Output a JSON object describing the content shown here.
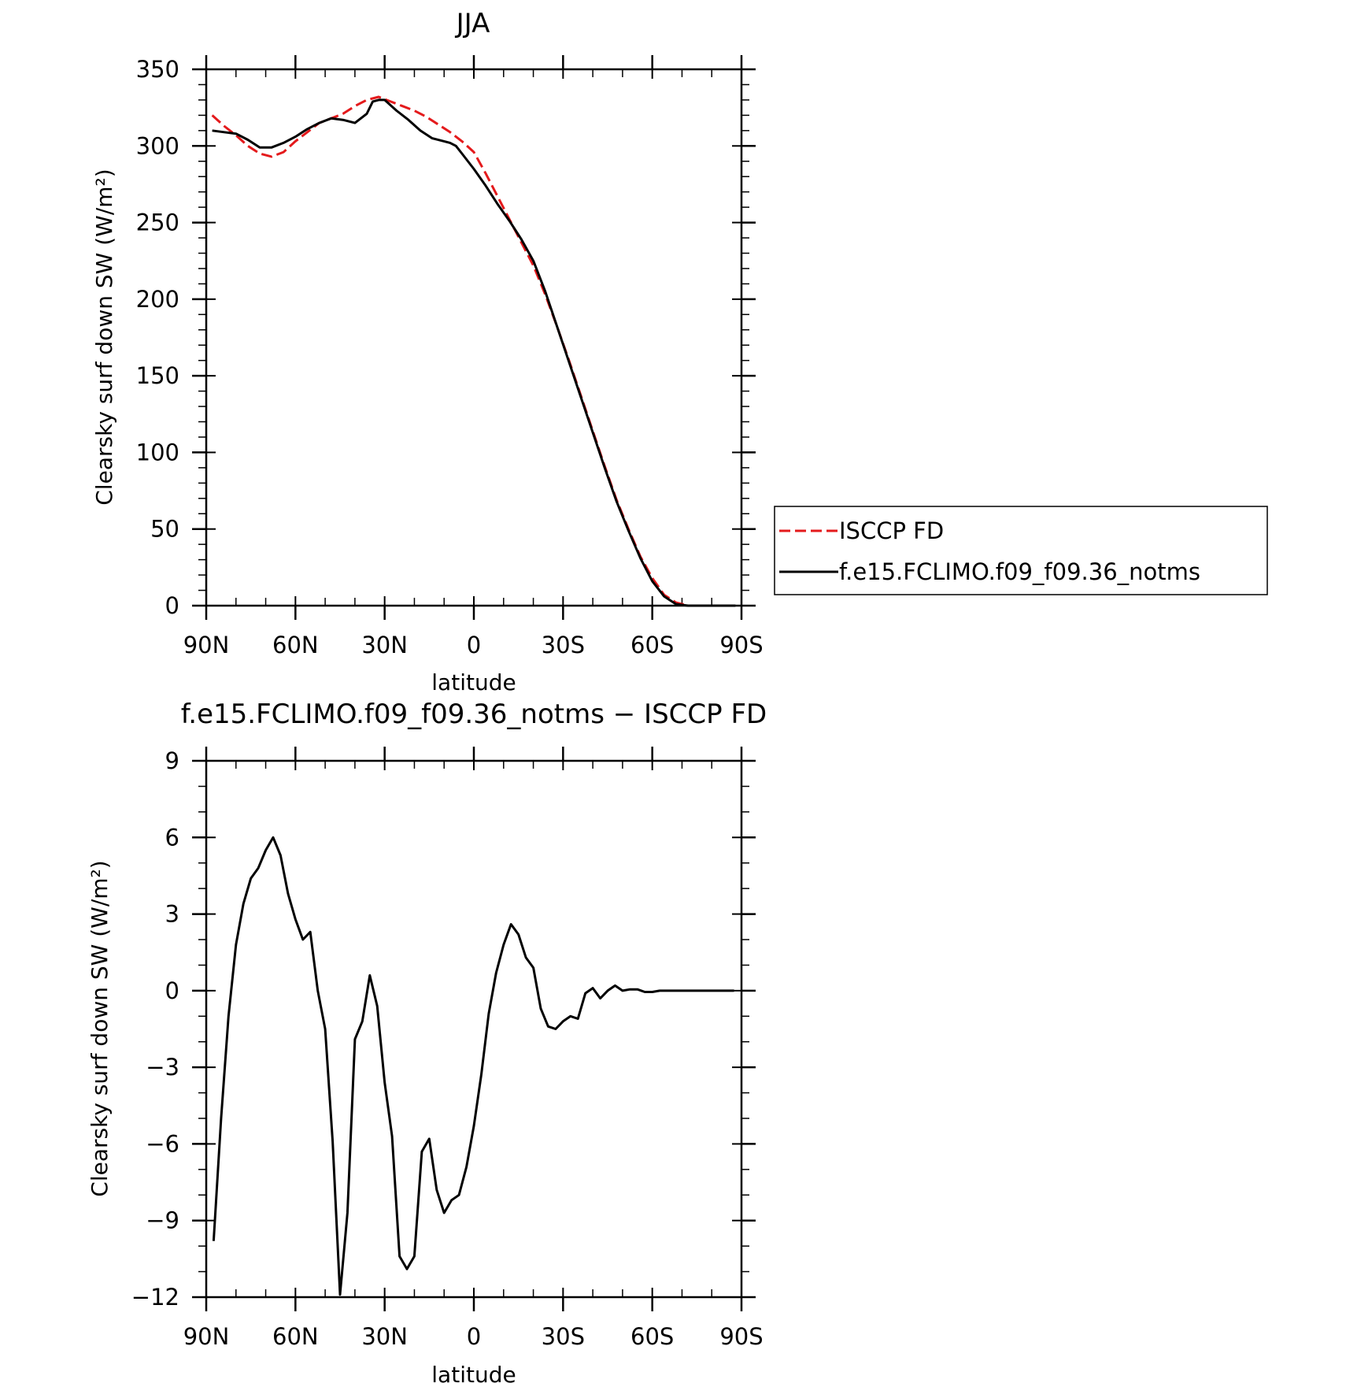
{
  "chart_data": [
    {
      "type": "line",
      "title": "JJA",
      "xlabel": "latitude",
      "ylabel": "Clearsky surf down SW (W/m²)",
      "xlim": [
        90,
        -90
      ],
      "ylim": [
        0,
        350
      ],
      "xticks": [
        {
          "value": 90,
          "label": "90N"
        },
        {
          "value": 60,
          "label": "60N"
        },
        {
          "value": 30,
          "label": "30N"
        },
        {
          "value": 0,
          "label": "0"
        },
        {
          "value": -30,
          "label": "30S"
        },
        {
          "value": -60,
          "label": "60S"
        },
        {
          "value": -90,
          "label": "90S"
        }
      ],
      "yticks": [
        0,
        50,
        100,
        150,
        200,
        250,
        300,
        350
      ],
      "legend": "right",
      "series": [
        {
          "name": "ISCCP FD",
          "color": "#e41a1c",
          "dash": "dashed",
          "x": [
            88,
            84,
            80,
            76,
            72,
            68,
            64,
            60,
            56,
            52,
            48,
            44,
            40,
            36,
            32,
            28,
            24,
            20,
            16,
            12,
            8,
            4,
            0,
            -4,
            -8,
            -12,
            -16,
            -20,
            -24,
            -28,
            -32,
            -36,
            -40,
            -44,
            -48,
            -52,
            -56,
            -60,
            -64,
            -68,
            -72,
            -76,
            -80,
            -84,
            -88
          ],
          "y": [
            320,
            313,
            307,
            300,
            295,
            293,
            296,
            303,
            309,
            315,
            318,
            321,
            326,
            330,
            332,
            329,
            326,
            323,
            319,
            314,
            309,
            303,
            296,
            282,
            267,
            252,
            237,
            222,
            203,
            182,
            160,
            137,
            114,
            91,
            69,
            50,
            32,
            18,
            7,
            2,
            0,
            0,
            0,
            0,
            0
          ]
        },
        {
          "name": "f.e15.FCLIMO.f09_f09.36_notms",
          "color": "#000000",
          "dash": "solid",
          "x": [
            88,
            84,
            80,
            76,
            72,
            68,
            64,
            60,
            56,
            52,
            48,
            44,
            40,
            36,
            34,
            32,
            30,
            26,
            22,
            18,
            14,
            10,
            8,
            6,
            4,
            0,
            -4,
            -8,
            -12,
            -16,
            -20,
            -24,
            -28,
            -32,
            -36,
            -40,
            -44,
            -48,
            -52,
            -56,
            -60,
            -64,
            -68,
            -72,
            -76,
            -80,
            -84,
            -88
          ],
          "y": [
            310,
            309,
            308,
            304,
            299,
            299,
            302,
            306,
            311,
            315,
            318,
            317,
            315,
            321,
            329,
            330,
            330,
            323,
            317,
            310,
            305,
            303,
            302,
            300,
            295,
            285,
            274,
            262,
            251,
            239,
            225,
            205,
            182,
            159,
            136,
            113,
            90,
            68,
            49,
            31,
            16,
            6,
            1,
            0,
            0,
            0,
            0,
            0
          ]
        }
      ]
    },
    {
      "type": "line",
      "title": "f.e15.FCLIMO.f09_f09.36_notms − ISCCP FD",
      "xlabel": "latitude",
      "ylabel": "Clearsky surf down SW (W/m²)",
      "xlim": [
        90,
        -90
      ],
      "ylim": [
        -12,
        9
      ],
      "xticks": [
        {
          "value": 90,
          "label": "90N"
        },
        {
          "value": 60,
          "label": "60N"
        },
        {
          "value": 30,
          "label": "30N"
        },
        {
          "value": 0,
          "label": "0"
        },
        {
          "value": -30,
          "label": "30S"
        },
        {
          "value": -60,
          "label": "60S"
        },
        {
          "value": -90,
          "label": "90S"
        }
      ],
      "yticks": [
        {
          "value": -12,
          "label": "−12"
        },
        {
          "value": -9,
          "label": "−9"
        },
        {
          "value": -6,
          "label": "−6"
        },
        {
          "value": -3,
          "label": "−3"
        },
        {
          "value": 0,
          "label": "0"
        },
        {
          "value": 3,
          "label": "3"
        },
        {
          "value": 6,
          "label": "6"
        },
        {
          "value": 9,
          "label": "9"
        }
      ],
      "series": [
        {
          "color": "#000000",
          "dash": "solid",
          "x": [
            87.5,
            85,
            82.5,
            80,
            77.5,
            75,
            72.5,
            70,
            67.5,
            65,
            62.5,
            60,
            57.5,
            55,
            52.5,
            50,
            47.5,
            45,
            42.5,
            40,
            37.5,
            35,
            32.5,
            30,
            27.5,
            25,
            22.5,
            20,
            17.5,
            15,
            12.5,
            10,
            7.5,
            5,
            2.5,
            0,
            -2.5,
            -5,
            -7.5,
            -10,
            -12.5,
            -15,
            -17.5,
            -20,
            -22.5,
            -25,
            -27.5,
            -30,
            -32.5,
            -35,
            -37.5,
            -40,
            -42.5,
            -45,
            -47.5,
            -50,
            -52.5,
            -55,
            -57.5,
            -60,
            -62.5,
            -65,
            -67.5,
            -70,
            -72.5,
            -75,
            -77.5,
            -80,
            -82.5,
            -85,
            -87.5
          ],
          "y": [
            -9.8,
            -5.0,
            -1.0,
            1.8,
            3.4,
            4.4,
            4.8,
            5.5,
            6.0,
            5.3,
            3.8,
            2.8,
            2.0,
            2.3,
            0.0,
            -1.5,
            -5.9,
            -11.9,
            -8.7,
            -1.9,
            -1.2,
            0.6,
            -0.6,
            -3.6,
            -5.7,
            -10.4,
            -10.9,
            -10.4,
            -6.3,
            -5.8,
            -7.8,
            -8.7,
            -8.2,
            -8.0,
            -6.9,
            -5.3,
            -3.3,
            -0.9,
            0.7,
            1.8,
            2.6,
            2.2,
            1.3,
            0.9,
            -0.7,
            -1.4,
            -1.5,
            -1.2,
            -1.0,
            -1.1,
            -0.1,
            0.1,
            -0.3,
            0.0,
            0.2,
            0.0,
            0.05,
            0.05,
            -0.05,
            -0.05,
            0.0,
            0.0,
            0.0,
            0.0,
            0.0,
            0.0,
            0.0,
            0.0,
            0.0,
            0.0,
            0.0
          ]
        }
      ]
    }
  ]
}
